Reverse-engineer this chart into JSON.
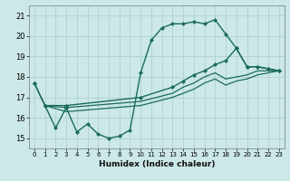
{
  "xlabel": "Humidex (Indice chaleur)",
  "background_color": "#cce8e8",
  "grid_color": "#aacccc",
  "line_color": "#1a6b5a",
  "xlim": [
    -0.5,
    23.5
  ],
  "ylim": [
    14.5,
    21.5
  ],
  "yticks": [
    15,
    16,
    17,
    18,
    19,
    20,
    21
  ],
  "xticks": [
    0,
    1,
    2,
    3,
    4,
    5,
    6,
    7,
    8,
    9,
    10,
    11,
    12,
    13,
    14,
    15,
    16,
    17,
    18,
    19,
    20,
    21,
    22,
    23
  ],
  "series": [
    {
      "x": [
        0,
        1,
        2,
        3,
        4,
        5,
        6,
        7,
        8,
        9,
        10,
        11,
        12,
        13,
        14,
        15,
        16,
        17,
        18,
        19,
        20,
        21,
        22,
        23
      ],
      "y": [
        17.7,
        16.6,
        15.5,
        16.5,
        15.3,
        15.7,
        15.2,
        15.0,
        15.1,
        15.4,
        18.2,
        19.8,
        20.4,
        20.6,
        20.6,
        20.7,
        20.6,
        20.8,
        20.1,
        19.4,
        18.5,
        18.5,
        18.4,
        18.3
      ],
      "marker": true,
      "lw": 1.0
    },
    {
      "x": [
        0,
        1,
        3,
        10,
        13,
        14,
        15,
        16,
        17,
        18,
        19,
        20,
        21,
        22,
        23
      ],
      "y": [
        17.7,
        16.6,
        16.6,
        17.0,
        17.5,
        17.8,
        18.1,
        18.3,
        18.6,
        18.8,
        19.4,
        18.5,
        18.5,
        18.4,
        18.3
      ],
      "marker": true,
      "lw": 1.0
    },
    {
      "x": [
        1,
        3,
        10,
        13,
        14,
        15,
        16,
        17,
        18,
        19,
        20,
        21,
        22,
        23
      ],
      "y": [
        16.6,
        16.5,
        16.8,
        17.2,
        17.5,
        17.7,
        18.0,
        18.2,
        17.9,
        18.0,
        18.1,
        18.3,
        18.3,
        18.3
      ],
      "marker": false,
      "lw": 0.9
    },
    {
      "x": [
        1,
        3,
        10,
        13,
        14,
        15,
        16,
        17,
        18,
        19,
        20,
        21,
        22,
        23
      ],
      "y": [
        16.6,
        16.3,
        16.6,
        17.0,
        17.2,
        17.4,
        17.7,
        17.9,
        17.6,
        17.8,
        17.9,
        18.1,
        18.2,
        18.3
      ],
      "marker": false,
      "lw": 0.9
    }
  ]
}
